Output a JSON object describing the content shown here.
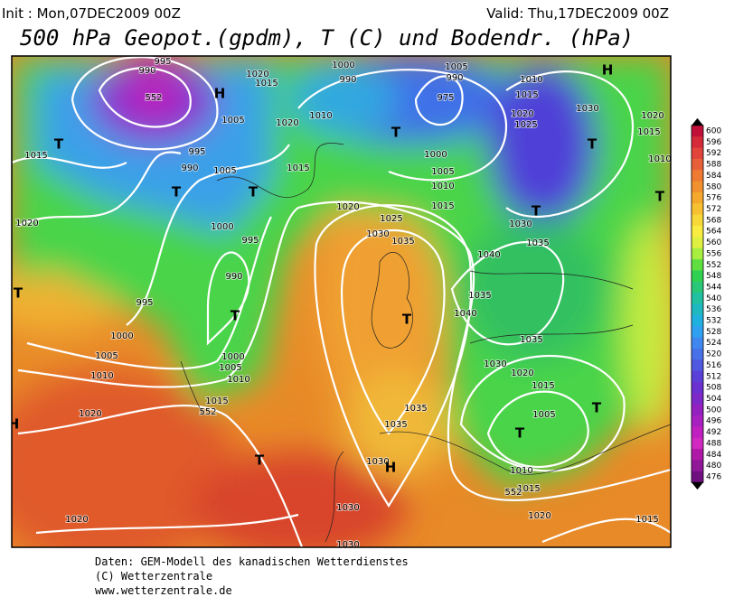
{
  "header": {
    "init": "Init : Mon,07DEC2009 00Z",
    "valid": "Valid: Thu,17DEC2009 00Z",
    "title": "500 hPa Geopot.(gpdm), T (C) und Bodendr. (hPa)"
  },
  "colorbar": {
    "ticks": [
      600,
      596,
      592,
      588,
      584,
      580,
      576,
      572,
      568,
      564,
      560,
      556,
      552,
      548,
      544,
      540,
      536,
      532,
      528,
      524,
      520,
      516,
      512,
      508,
      504,
      500,
      496,
      492,
      488,
      484,
      480,
      476
    ],
    "colors": [
      "#c0103a",
      "#d42a3a",
      "#e0443a",
      "#e8603a",
      "#ee7a34",
      "#f0902e",
      "#f4a82c",
      "#f6c030",
      "#f8d838",
      "#f8ec40",
      "#e0f040",
      "#a8ee40",
      "#60e040",
      "#30d050",
      "#28c878",
      "#20c0a0",
      "#20b8c0",
      "#20b0e0",
      "#30a0f0",
      "#4088f0",
      "#4870e8",
      "#5058e0",
      "#5a40d8",
      "#6a30d0",
      "#7e28c8",
      "#9420c0",
      "#a820c0",
      "#c020c0",
      "#d028c0",
      "#b018a8",
      "#901898",
      "#701080"
    ]
  },
  "map_labels": [
    "995",
    "990",
    "1020",
    "1015",
    "1000",
    "990",
    "1005",
    "990",
    "975",
    "1010",
    "1015",
    "1020",
    "1025",
    "1030",
    "1020",
    "1015",
    "1010",
    "1005",
    "1020",
    "1010",
    "1015",
    "995",
    "990",
    "1005",
    "1015",
    "1000",
    "1005",
    "1010",
    "1015",
    "1020",
    "1025",
    "1030",
    "1035",
    "1040",
    "1035",
    "1030",
    "1000",
    "995",
    "990",
    "995",
    "1020",
    "1000",
    "1005",
    "1010",
    "1000",
    "1005",
    "1010",
    "1015",
    "1020",
    "1035",
    "1040",
    "1035",
    "1030",
    "1020",
    "1015",
    "1005",
    "1010",
    "1015",
    "1020",
    "1015",
    "1020",
    "1030",
    "1030",
    "1035",
    "1035",
    "1030",
    "T",
    "T",
    "T",
    "T",
    "T",
    "H",
    "T",
    "T",
    "T",
    "T",
    "T",
    "T",
    "T",
    "T",
    "H",
    "H",
    "H",
    "552",
    "552",
    "552"
  ],
  "footer": [
    "Daten: GEM-Modell des kanadischen Wetterdienstes",
    "(C) Wetterzentrale",
    "www.wetterzentrale.de"
  ]
}
